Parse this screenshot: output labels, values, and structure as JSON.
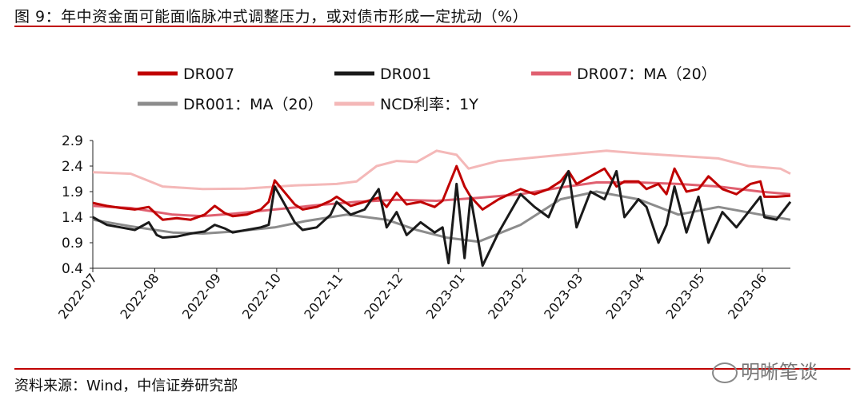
{
  "figure": {
    "title": "图 9：年中资金面可能面临脉冲式调整压力，或对债市形成一定扰动（%）",
    "source": "资料来源：Wind，中信证券研究部",
    "watermark": "明晰笔谈"
  },
  "chart_data": {
    "type": "line",
    "ylim": [
      0.4,
      2.9
    ],
    "yticks": [
      "2.9",
      "2.4",
      "1.9",
      "1.4",
      "0.9",
      "0.4"
    ],
    "xlim": [
      "2022-07-01",
      "2023-06-15"
    ],
    "xticks": [
      "2022-07",
      "2022-08",
      "2022-09",
      "2022-10",
      "2022-11",
      "2022-12",
      "2023-01",
      "2023-02",
      "2023-03",
      "2023-04",
      "2023-05",
      "2023-06"
    ],
    "grid": false,
    "legend_position": "top",
    "series": [
      {
        "name": "DR007",
        "color": "#c00000",
        "width": 3,
        "points": [
          [
            "2022-07-01",
            1.68
          ],
          [
            "2022-07-08",
            1.62
          ],
          [
            "2022-07-15",
            1.58
          ],
          [
            "2022-07-22",
            1.55
          ],
          [
            "2022-07-29",
            1.6
          ],
          [
            "2022-08-02",
            1.45
          ],
          [
            "2022-08-05",
            1.35
          ],
          [
            "2022-08-12",
            1.38
          ],
          [
            "2022-08-19",
            1.35
          ],
          [
            "2022-08-26",
            1.45
          ],
          [
            "2022-08-31",
            1.62
          ],
          [
            "2022-09-05",
            1.48
          ],
          [
            "2022-09-09",
            1.42
          ],
          [
            "2022-09-16",
            1.45
          ],
          [
            "2022-09-23",
            1.55
          ],
          [
            "2022-09-27",
            1.7
          ],
          [
            "2022-09-30",
            2.12
          ],
          [
            "2022-10-10",
            1.65
          ],
          [
            "2022-10-14",
            1.55
          ],
          [
            "2022-10-21",
            1.6
          ],
          [
            "2022-10-28",
            1.72
          ],
          [
            "2022-10-31",
            1.8
          ],
          [
            "2022-11-07",
            1.62
          ],
          [
            "2022-11-14",
            1.7
          ],
          [
            "2022-11-21",
            1.78
          ],
          [
            "2022-11-25",
            1.6
          ],
          [
            "2022-11-30",
            1.88
          ],
          [
            "2022-12-05",
            1.65
          ],
          [
            "2022-12-12",
            1.7
          ],
          [
            "2022-12-19",
            1.6
          ],
          [
            "2022-12-23",
            1.72
          ],
          [
            "2022-12-30",
            2.4
          ],
          [
            "2023-01-03",
            2.0
          ],
          [
            "2023-01-06",
            1.8
          ],
          [
            "2023-01-12",
            1.55
          ],
          [
            "2023-01-20",
            1.75
          ],
          [
            "2023-01-31",
            1.95
          ],
          [
            "2023-02-07",
            1.85
          ],
          [
            "2023-02-14",
            1.95
          ],
          [
            "2023-02-20",
            2.1
          ],
          [
            "2023-02-24",
            2.3
          ],
          [
            "2023-02-28",
            2.05
          ],
          [
            "2023-03-07",
            2.2
          ],
          [
            "2023-03-14",
            2.35
          ],
          [
            "2023-03-20",
            2.0
          ],
          [
            "2023-03-24",
            2.1
          ],
          [
            "2023-03-31",
            2.1
          ],
          [
            "2023-04-04",
            1.95
          ],
          [
            "2023-04-10",
            2.05
          ],
          [
            "2023-04-14",
            1.85
          ],
          [
            "2023-04-18",
            2.35
          ],
          [
            "2023-04-24",
            1.9
          ],
          [
            "2023-04-30",
            1.95
          ],
          [
            "2023-05-05",
            2.2
          ],
          [
            "2023-05-12",
            1.95
          ],
          [
            "2023-05-19",
            1.85
          ],
          [
            "2023-05-26",
            2.05
          ],
          [
            "2023-05-31",
            2.1
          ],
          [
            "2023-06-02",
            1.8
          ],
          [
            "2023-06-08",
            1.8
          ],
          [
            "2023-06-15",
            1.82
          ]
        ]
      },
      {
        "name": "DR001",
        "color": "#1a1a1a",
        "width": 3,
        "points": [
          [
            "2022-07-01",
            1.4
          ],
          [
            "2022-07-08",
            1.25
          ],
          [
            "2022-07-15",
            1.2
          ],
          [
            "2022-07-22",
            1.15
          ],
          [
            "2022-07-29",
            1.3
          ],
          [
            "2022-08-02",
            1.05
          ],
          [
            "2022-08-05",
            1.0
          ],
          [
            "2022-08-12",
            1.02
          ],
          [
            "2022-08-19",
            1.08
          ],
          [
            "2022-08-26",
            1.12
          ],
          [
            "2022-08-31",
            1.25
          ],
          [
            "2022-09-05",
            1.18
          ],
          [
            "2022-09-09",
            1.1
          ],
          [
            "2022-09-16",
            1.15
          ],
          [
            "2022-09-23",
            1.2
          ],
          [
            "2022-09-27",
            1.25
          ],
          [
            "2022-09-30",
            2.0
          ],
          [
            "2022-10-10",
            1.3
          ],
          [
            "2022-10-14",
            1.15
          ],
          [
            "2022-10-21",
            1.2
          ],
          [
            "2022-10-28",
            1.45
          ],
          [
            "2022-10-31",
            1.7
          ],
          [
            "2022-11-07",
            1.45
          ],
          [
            "2022-11-14",
            1.55
          ],
          [
            "2022-11-21",
            1.95
          ],
          [
            "2022-11-25",
            1.2
          ],
          [
            "2022-11-30",
            1.5
          ],
          [
            "2022-12-05",
            1.05
          ],
          [
            "2022-12-12",
            1.3
          ],
          [
            "2022-12-19",
            1.1
          ],
          [
            "2022-12-23",
            1.2
          ],
          [
            "2022-12-26",
            0.5
          ],
          [
            "2022-12-30",
            2.05
          ],
          [
            "2023-01-03",
            0.6
          ],
          [
            "2023-01-06",
            1.8
          ],
          [
            "2023-01-12",
            0.45
          ],
          [
            "2023-01-20",
            1.1
          ],
          [
            "2023-01-31",
            1.85
          ],
          [
            "2023-02-07",
            1.6
          ],
          [
            "2023-02-14",
            1.4
          ],
          [
            "2023-02-20",
            1.95
          ],
          [
            "2023-02-24",
            2.3
          ],
          [
            "2023-02-28",
            1.2
          ],
          [
            "2023-03-07",
            1.9
          ],
          [
            "2023-03-14",
            1.75
          ],
          [
            "2023-03-20",
            2.3
          ],
          [
            "2023-03-24",
            1.4
          ],
          [
            "2023-03-31",
            1.75
          ],
          [
            "2023-04-04",
            1.6
          ],
          [
            "2023-04-10",
            0.9
          ],
          [
            "2023-04-14",
            1.25
          ],
          [
            "2023-04-18",
            2.0
          ],
          [
            "2023-04-24",
            1.1
          ],
          [
            "2023-04-30",
            1.8
          ],
          [
            "2023-05-05",
            0.9
          ],
          [
            "2023-05-12",
            1.5
          ],
          [
            "2023-05-19",
            1.2
          ],
          [
            "2023-05-26",
            1.55
          ],
          [
            "2023-05-31",
            1.8
          ],
          [
            "2023-06-02",
            1.4
          ],
          [
            "2023-06-08",
            1.35
          ],
          [
            "2023-06-15",
            1.7
          ]
        ]
      },
      {
        "name": "DR007：MA（20）",
        "color": "#e06070",
        "width": 3,
        "points": [
          [
            "2022-07-01",
            1.62
          ],
          [
            "2022-07-20",
            1.58
          ],
          [
            "2022-08-10",
            1.45
          ],
          [
            "2022-08-25",
            1.42
          ],
          [
            "2022-09-10",
            1.47
          ],
          [
            "2022-09-30",
            1.55
          ],
          [
            "2022-10-20",
            1.63
          ],
          [
            "2022-11-10",
            1.7
          ],
          [
            "2022-11-30",
            1.74
          ],
          [
            "2022-12-20",
            1.72
          ],
          [
            "2023-01-10",
            1.78
          ],
          [
            "2023-01-31",
            1.85
          ],
          [
            "2023-02-20",
            1.98
          ],
          [
            "2023-03-10",
            2.08
          ],
          [
            "2023-03-31",
            2.08
          ],
          [
            "2023-04-20",
            2.05
          ],
          [
            "2023-05-10",
            2.0
          ],
          [
            "2023-05-31",
            1.9
          ],
          [
            "2023-06-15",
            1.85
          ]
        ]
      },
      {
        "name": "DR001：MA（20）",
        "color": "#8c8c8c",
        "width": 3,
        "points": [
          [
            "2022-07-01",
            1.35
          ],
          [
            "2022-07-20",
            1.22
          ],
          [
            "2022-08-10",
            1.1
          ],
          [
            "2022-08-25",
            1.08
          ],
          [
            "2022-09-10",
            1.12
          ],
          [
            "2022-09-30",
            1.2
          ],
          [
            "2022-10-15",
            1.32
          ],
          [
            "2022-11-05",
            1.45
          ],
          [
            "2022-11-25",
            1.35
          ],
          [
            "2022-12-10",
            1.15
          ],
          [
            "2022-12-25",
            1.0
          ],
          [
            "2023-01-10",
            0.92
          ],
          [
            "2023-01-31",
            1.25
          ],
          [
            "2023-02-20",
            1.75
          ],
          [
            "2023-03-10",
            1.9
          ],
          [
            "2023-03-31",
            1.75
          ],
          [
            "2023-04-20",
            1.45
          ],
          [
            "2023-05-10",
            1.6
          ],
          [
            "2023-05-31",
            1.45
          ],
          [
            "2023-06-15",
            1.35
          ]
        ]
      },
      {
        "name": "NCD利率：1Y",
        "color": "#f4b8b8",
        "width": 3,
        "points": [
          [
            "2022-07-01",
            2.28
          ],
          [
            "2022-07-20",
            2.25
          ],
          [
            "2022-08-05",
            2.0
          ],
          [
            "2022-08-25",
            1.95
          ],
          [
            "2022-09-15",
            1.96
          ],
          [
            "2022-10-10",
            2.02
          ],
          [
            "2022-10-31",
            2.05
          ],
          [
            "2022-11-10",
            2.1
          ],
          [
            "2022-11-20",
            2.4
          ],
          [
            "2022-11-30",
            2.5
          ],
          [
            "2022-12-10",
            2.48
          ],
          [
            "2022-12-20",
            2.7
          ],
          [
            "2022-12-30",
            2.62
          ],
          [
            "2023-01-05",
            2.35
          ],
          [
            "2023-01-20",
            2.5
          ],
          [
            "2023-02-10",
            2.58
          ],
          [
            "2023-03-01",
            2.65
          ],
          [
            "2023-03-15",
            2.7
          ],
          [
            "2023-03-31",
            2.65
          ],
          [
            "2023-04-20",
            2.6
          ],
          [
            "2023-05-10",
            2.55
          ],
          [
            "2023-05-25",
            2.4
          ],
          [
            "2023-06-10",
            2.35
          ],
          [
            "2023-06-15",
            2.25
          ]
        ]
      }
    ]
  }
}
